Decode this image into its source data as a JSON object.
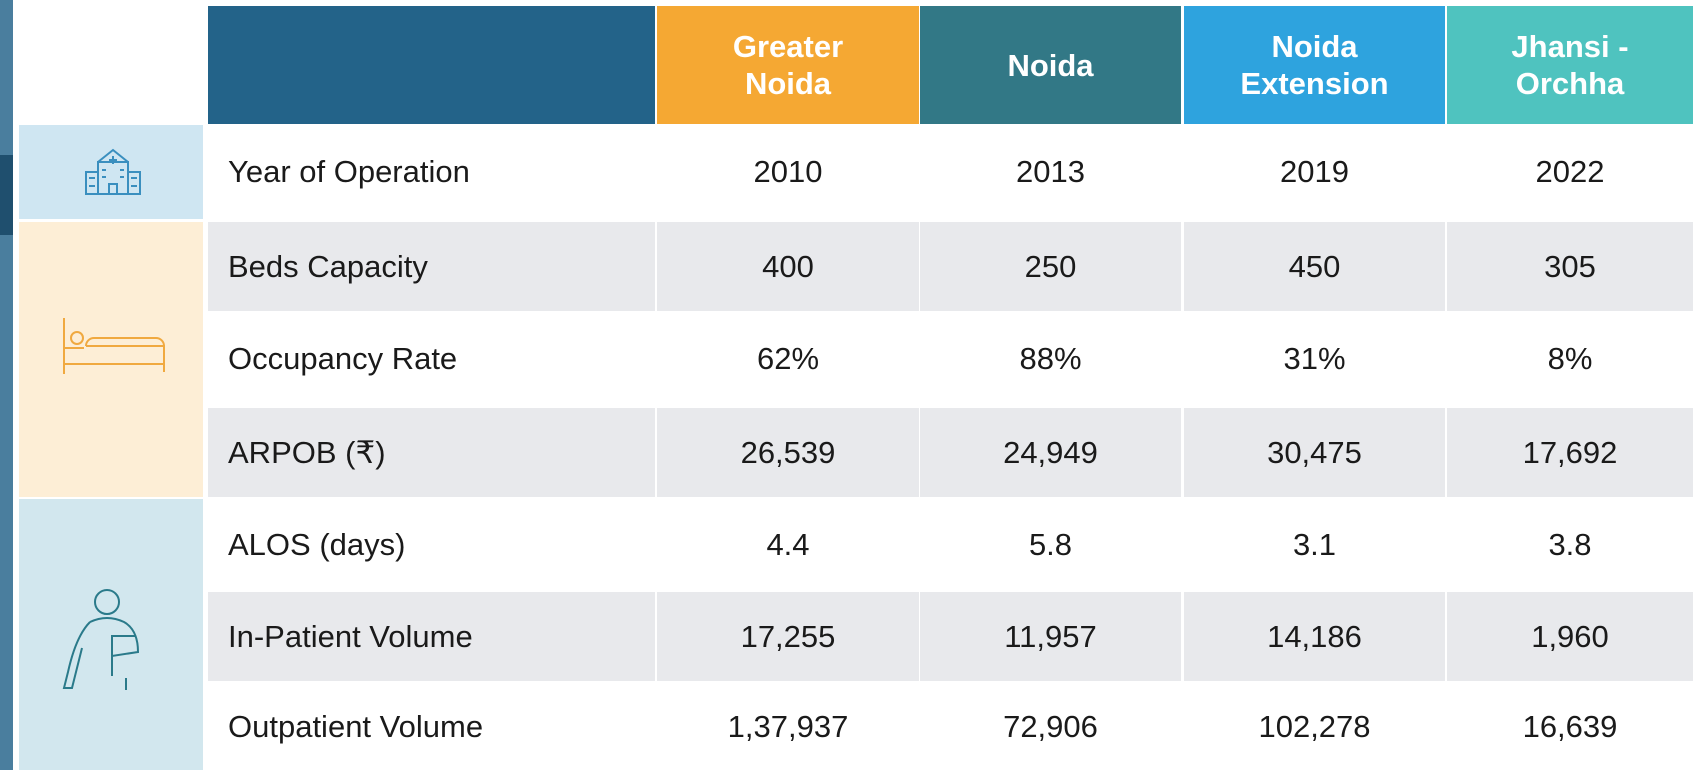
{
  "table": {
    "columns": [
      "Greater Noida",
      "Noida",
      "Noida Extension",
      "Jhansi - Orchha"
    ],
    "rows": [
      {
        "label": "Year of Operation",
        "cells": [
          "2010",
          "2013",
          "2019",
          "2022"
        ]
      },
      {
        "label": "Beds Capacity",
        "cells": [
          "400",
          "250",
          "450",
          "305"
        ]
      },
      {
        "label": "Occupancy Rate",
        "cells": [
          "62%",
          "88%",
          "31%",
          "8%"
        ]
      },
      {
        "label": "ARPOB (₹)",
        "cells": [
          "26,539",
          "24,949",
          "30,475",
          "17,692"
        ]
      },
      {
        "label": "ALOS (days)",
        "cells": [
          "4.4",
          "5.8",
          "3.1",
          "3.8"
        ]
      },
      {
        "label": "In-Patient Volume",
        "cells": [
          "17,255",
          "11,957",
          "14,186",
          "1,960"
        ]
      },
      {
        "label": "Outpatient Volume",
        "cells": [
          "1,37,937",
          "72,906",
          "102,278",
          "16,639"
        ]
      }
    ]
  }
}
